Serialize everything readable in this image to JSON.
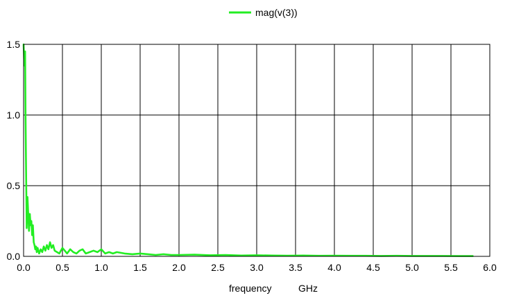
{
  "chart_data": {
    "type": "line",
    "title": "",
    "xlabel": "frequency",
    "xunit": "GHz",
    "ylabel": "",
    "xlim": [
      0.0,
      6.0
    ],
    "ylim": [
      0.0,
      1.5
    ],
    "x_ticks": [
      "0.0",
      "0.5",
      "1.0",
      "1.5",
      "2.0",
      "2.5",
      "3.0",
      "3.5",
      "4.0",
      "4.5",
      "5.0",
      "5.5",
      "6.0"
    ],
    "y_ticks": [
      "0.0",
      "0.5",
      "1.0",
      "1.5"
    ],
    "grid": true,
    "legend": "top-center",
    "series": [
      {
        "name": "mag(v(3))",
        "color": "#22ee22",
        "x": [
          0.0,
          0.01,
          0.02,
          0.025,
          0.03,
          0.04,
          0.05,
          0.06,
          0.07,
          0.08,
          0.09,
          0.1,
          0.11,
          0.12,
          0.13,
          0.14,
          0.15,
          0.16,
          0.17,
          0.18,
          0.19,
          0.2,
          0.22,
          0.24,
          0.26,
          0.28,
          0.3,
          0.32,
          0.34,
          0.36,
          0.38,
          0.4,
          0.43,
          0.46,
          0.5,
          0.53,
          0.56,
          0.6,
          0.64,
          0.68,
          0.72,
          0.76,
          0.8,
          0.85,
          0.9,
          0.95,
          1.0,
          1.05,
          1.1,
          1.15,
          1.2,
          1.3,
          1.4,
          1.5,
          1.6,
          1.7,
          1.8,
          1.9,
          2.0,
          2.2,
          2.4,
          2.6,
          2.8,
          3.0,
          3.2,
          3.4,
          3.6,
          3.8,
          4.0,
          4.2,
          4.4,
          4.6,
          4.8,
          5.0,
          5.2,
          5.4,
          5.6,
          5.78
        ],
        "y": [
          1.5,
          1.35,
          1.45,
          1.0,
          0.7,
          0.2,
          0.42,
          0.3,
          0.18,
          0.3,
          0.22,
          0.25,
          0.15,
          0.22,
          0.1,
          0.08,
          0.05,
          0.07,
          0.03,
          0.06,
          0.04,
          0.02,
          0.05,
          0.03,
          0.07,
          0.04,
          0.08,
          0.05,
          0.1,
          0.06,
          0.08,
          0.04,
          0.03,
          0.02,
          0.06,
          0.04,
          0.02,
          0.05,
          0.03,
          0.02,
          0.04,
          0.05,
          0.02,
          0.03,
          0.04,
          0.03,
          0.05,
          0.02,
          0.03,
          0.02,
          0.03,
          0.02,
          0.015,
          0.02,
          0.015,
          0.01,
          0.015,
          0.01,
          0.01,
          0.012,
          0.008,
          0.01,
          0.006,
          0.008,
          0.006,
          0.005,
          0.006,
          0.004,
          0.005,
          0.004,
          0.004,
          0.003,
          0.004,
          0.003,
          0.003,
          0.003,
          0.002,
          0.002
        ]
      }
    ]
  }
}
